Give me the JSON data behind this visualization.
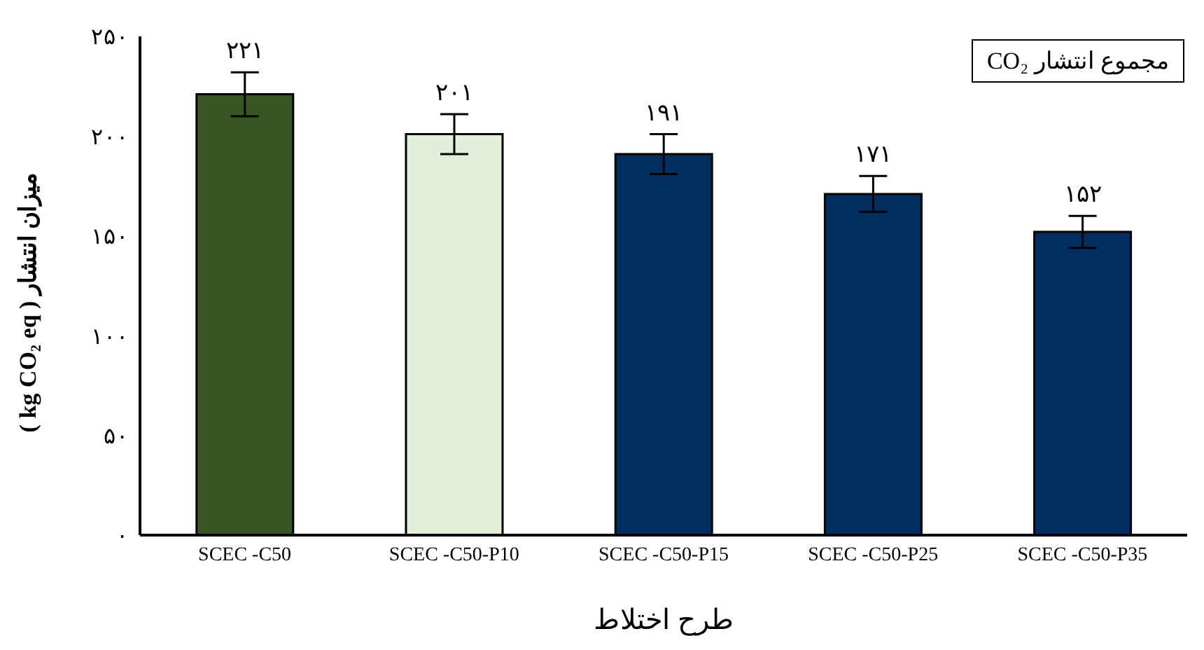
{
  "chart_data": {
    "type": "bar",
    "xlabel": "طرح اختلاط",
    "ylabel": "میزان انتشار ( kg CO₂ eq )",
    "categories": [
      "SCEC -C50",
      "SCEC -C50-P10",
      "SCEC -C50-P15",
      "SCEC -C50-P25",
      "SCEC -C50-P35"
    ],
    "values": [
      221,
      201,
      191,
      171,
      152
    ],
    "colors": [
      "#375623",
      "#e2efda",
      "#002f5f",
      "#002f5f",
      "#002f5f"
    ],
    "errors": [
      11,
      10,
      10,
      9,
      8
    ],
    "value_labels": [
      "۲۲۱",
      "۲۰۱",
      "۱۹۱",
      "۱۷۱",
      "۱۵۲"
    ],
    "ylim": [
      0,
      250
    ],
    "yticks": [
      {
        "value": 0,
        "label": "۰"
      },
      {
        "value": 50,
        "label": "۵۰"
      },
      {
        "value": 100,
        "label": "۱۰۰"
      },
      {
        "value": 150,
        "label": "۱۵۰"
      },
      {
        "value": 200,
        "label": "۲۰۰"
      },
      {
        "value": 250,
        "label": "۲۵۰"
      }
    ],
    "annotations": [
      "CO₂ مجموع انتشار"
    ],
    "grid": false
  }
}
